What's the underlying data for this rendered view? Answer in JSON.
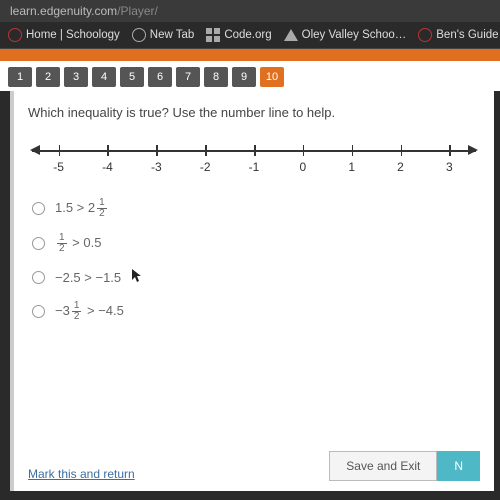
{
  "url": {
    "domain": "learn.edgenuity.com",
    "path": "/Player/"
  },
  "bookmarks": [
    {
      "name": "home-schoology",
      "label": "Home | Schoology",
      "icon": "circle"
    },
    {
      "name": "new-tab",
      "label": "New Tab",
      "icon": "globe"
    },
    {
      "name": "code-org",
      "label": "Code.org",
      "icon": "grid"
    },
    {
      "name": "oley-valley",
      "label": "Oley Valley Schoo…",
      "icon": "tri"
    },
    {
      "name": "bens-guide",
      "label": "Ben's Guide To th…",
      "icon": "circle"
    }
  ],
  "nav": {
    "items": [
      "1",
      "2",
      "3",
      "4",
      "5",
      "6",
      "7",
      "8",
      "9",
      "10"
    ],
    "active_index": 9
  },
  "question": "Which inequality is true? Use the number line to help.",
  "numberline": {
    "min": -5,
    "max": 3,
    "ticks": [
      -5,
      -4,
      -3,
      -2,
      -1,
      0,
      1,
      2,
      3
    ],
    "line_color": "#333333"
  },
  "options": [
    {
      "label_pre": "1.5 > 2",
      "frac": {
        "n": "1",
        "d": "2"
      },
      "label_post": ""
    },
    {
      "label_pre": "",
      "frac": {
        "n": "1",
        "d": "2"
      },
      "label_post": " > 0.5"
    },
    {
      "label_pre": "−2.5 > −1.5",
      "frac": null,
      "label_post": ""
    },
    {
      "label_pre": "−3",
      "frac": {
        "n": "1",
        "d": "2"
      },
      "label_post": " > −4.5"
    }
  ],
  "footer": {
    "mark_link": "Mark this and return",
    "save_label": "Save and Exit",
    "next_label": "N"
  },
  "colors": {
    "accent": "#e07020",
    "nav_bg": "#555555",
    "teal": "#4fb8c7",
    "link": "#3a6ea5"
  }
}
